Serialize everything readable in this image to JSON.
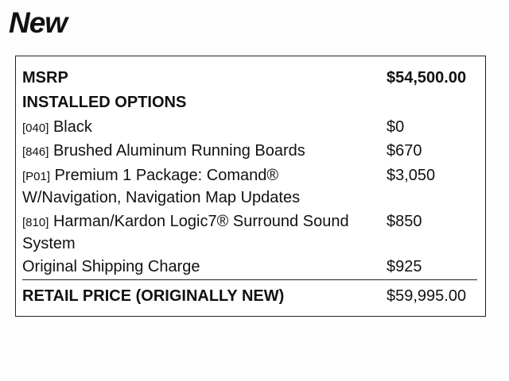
{
  "heading": "New",
  "msrp": {
    "label": "MSRP",
    "price": "$54,500.00"
  },
  "installed_options_label": "INSTALLED OPTIONS",
  "options": [
    {
      "code": "[040]",
      "description": "Black",
      "price": "$0"
    },
    {
      "code": "[846]",
      "description": "Brushed Aluminum Running Boards",
      "price": "$670"
    },
    {
      "code": "[P01]",
      "description": "Premium 1 Package: Comand® W/Navigation, Navigation Map Updates",
      "price": "$3,050"
    },
    {
      "code": "[810]",
      "description": "Harman/Kardon Logic7® Surround Sound System",
      "price": "$850"
    }
  ],
  "shipping": {
    "label": "Original Shipping Charge",
    "price": "$925"
  },
  "retail": {
    "label": "RETAIL PRICE (ORIGINALLY NEW)",
    "price": "$59,995.00"
  }
}
